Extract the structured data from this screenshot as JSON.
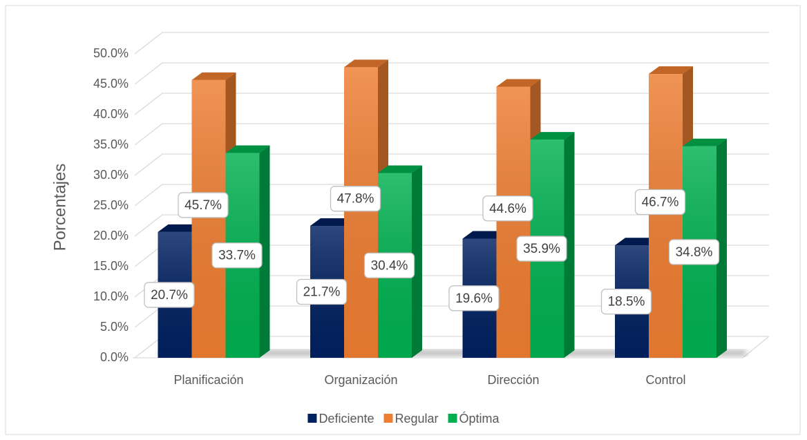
{
  "chart_data": {
    "type": "bar",
    "y_label": "Porcentajes",
    "categories": [
      "Planificación",
      "Organización",
      "Dirección",
      "Control"
    ],
    "series": [
      {
        "name": "Deficiente",
        "color": "#002060",
        "values": [
          20.7,
          21.7,
          19.6,
          18.5
        ],
        "value_labels": [
          "20.7%",
          "21.7%",
          "19.6%",
          "18.5%"
        ]
      },
      {
        "name": "Regular",
        "color": "#ED7D31",
        "values": [
          45.7,
          47.8,
          44.6,
          46.7
        ],
        "value_labels": [
          "45.7%",
          "47.8%",
          "44.6%",
          "46.7%"
        ]
      },
      {
        "name": "Óptima",
        "color": "#00B050",
        "values": [
          33.7,
          30.4,
          35.9,
          34.8
        ],
        "value_labels": [
          "33.7%",
          "30.4%",
          "35.9%",
          "34.8%"
        ]
      }
    ],
    "ylim": [
      0,
      50
    ],
    "yticks": [
      {
        "value": 0,
        "label": "0.0%"
      },
      {
        "value": 5,
        "label": "5.0%"
      },
      {
        "value": 10,
        "label": "10.0%"
      },
      {
        "value": 15,
        "label": "15.0%"
      },
      {
        "value": 20,
        "label": "20.0%"
      },
      {
        "value": 25,
        "label": "25.0%"
      },
      {
        "value": 30,
        "label": "30.0%"
      },
      {
        "value": 35,
        "label": "35.0%"
      },
      {
        "value": 40,
        "label": "40.0%"
      },
      {
        "value": 45,
        "label": "45.0%"
      },
      {
        "value": 50,
        "label": "50.0%"
      }
    ],
    "grid": true,
    "legend": "bottom"
  }
}
